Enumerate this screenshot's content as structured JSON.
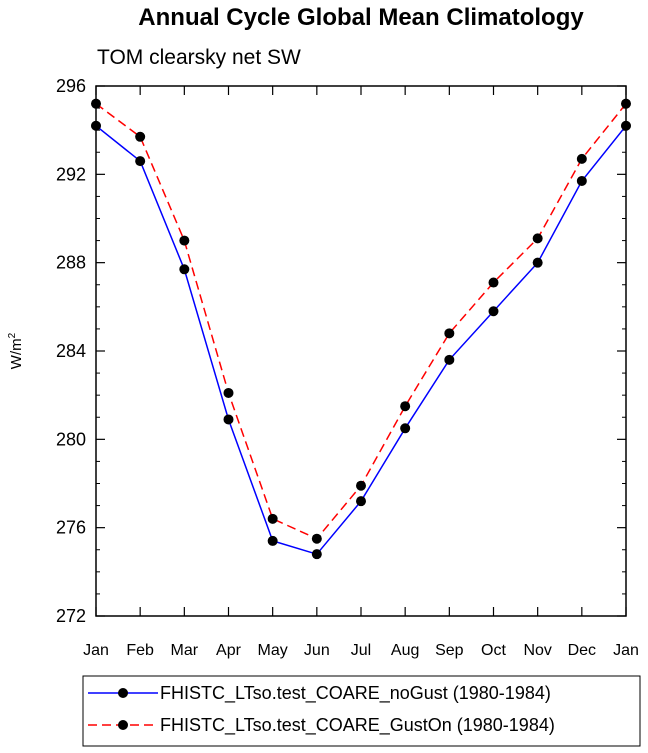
{
  "chart_data": {
    "type": "line",
    "title": "Annual Cycle Global Mean Climatology",
    "subtitle": "TOM clearsky net SW",
    "xlabel": "",
    "ylabel": "W/m",
    "ylabel_superscript": "2",
    "categories": [
      "Jan",
      "Feb",
      "Mar",
      "Apr",
      "May",
      "Jun",
      "Jul",
      "Aug",
      "Sep",
      "Oct",
      "Nov",
      "Dec",
      "Jan"
    ],
    "ylim": [
      272,
      296
    ],
    "yticks": [
      272,
      276,
      280,
      284,
      288,
      292,
      296
    ],
    "series": [
      {
        "name": "FHISTC_LTso.test_COARE_noGust (1980-1984)",
        "color": "#0000ff",
        "dash": "solid",
        "values": [
          294.2,
          292.6,
          287.7,
          280.9,
          275.4,
          274.8,
          277.2,
          280.5,
          283.6,
          285.8,
          288.0,
          291.7,
          294.2
        ]
      },
      {
        "name": "FHISTC_LTso.test_COARE_GustOn (1980-1984)",
        "color": "#ff0000",
        "dash": "dashed",
        "values": [
          295.2,
          293.7,
          289.0,
          282.1,
          276.4,
          275.5,
          277.9,
          281.5,
          284.8,
          287.1,
          289.1,
          292.7,
          295.2
        ]
      }
    ],
    "marker_color": "#000000",
    "legend_position": "bottom"
  }
}
